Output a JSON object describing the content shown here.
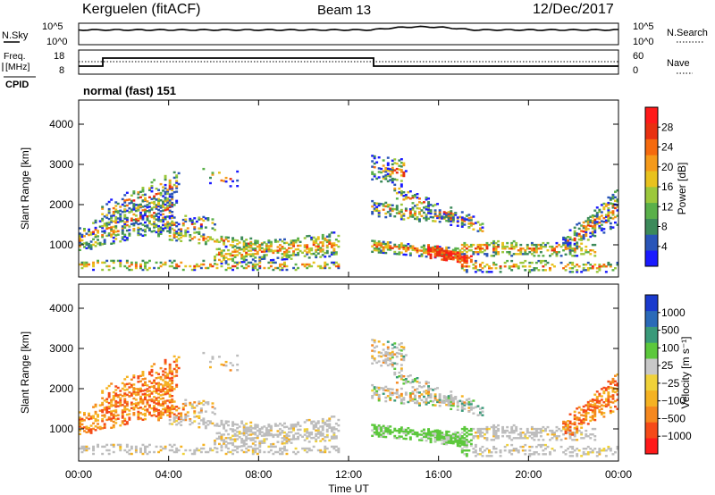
{
  "header": {
    "station": "Kerguelen (fitACF)",
    "beam": "Beam 13",
    "date": "12/Dec/2017"
  },
  "noise_panel": {
    "left_label": "N.Sky",
    "right_label": "N.Search",
    "left_ticks": [
      "10^5",
      "10^0"
    ],
    "right_ticks": [
      "10^5",
      "10^0"
    ]
  },
  "freq_panel": {
    "left_label_1": "Freq.",
    "left_label_2": "[MHz]",
    "cpid_label": "CPID",
    "right_label": "Nave",
    "left_ticks": [
      "18",
      "8"
    ],
    "right_ticks": [
      "60",
      "0"
    ]
  },
  "program_label": "normal (fast) 151",
  "time_axis": {
    "xlabel": "Time UT",
    "ticks": [
      "00:00",
      "04:00",
      "08:00",
      "12:00",
      "16:00",
      "20:00",
      "00:00"
    ]
  },
  "colors": {
    "power": [
      "#1a1aff",
      "#2a55b8",
      "#3c8a5a",
      "#5ab04a",
      "#9cc83c",
      "#e8c21e",
      "#f59a1a",
      "#f56a0e",
      "#e83010",
      "#ff1a1a"
    ],
    "velocity": [
      "#ff1a1a",
      "#f54a18",
      "#f5881e",
      "#f5b222",
      "#f0d23a",
      "#c8c8c8",
      "#5cc83c",
      "#3a9a7a",
      "#2a6ab8",
      "#1a3acd"
    ],
    "ground": "#bdbdbd"
  },
  "chart_data": [
    {
      "type": "heatmap",
      "name": "power-panel",
      "xlabel": "Time UT",
      "ylabel": "Slant Range [km]",
      "xlim": [
        0,
        24
      ],
      "ylim": [
        200,
        4600
      ],
      "yticks": [
        "1000",
        "2000",
        "3000",
        "4000"
      ],
      "colorbar": {
        "label": "Power [dB]",
        "ticks": [
          "4",
          "8",
          "12",
          "16",
          "20",
          "24",
          "28"
        ],
        "range": [
          0,
          32
        ]
      }
    },
    {
      "type": "heatmap",
      "name": "velocity-panel",
      "xlabel": "Time UT",
      "ylabel": "Slant Range [km]",
      "xlim": [
        0,
        24
      ],
      "ylim": [
        200,
        4600
      ],
      "yticks": [
        "1000",
        "2000",
        "3000",
        "4000"
      ],
      "colorbar": {
        "label": "Velocity [m s⁻¹]",
        "ticks": [
          "1000",
          "500",
          "100",
          "25",
          "−25",
          "−100",
          "−500",
          "−1000"
        ]
      }
    }
  ]
}
